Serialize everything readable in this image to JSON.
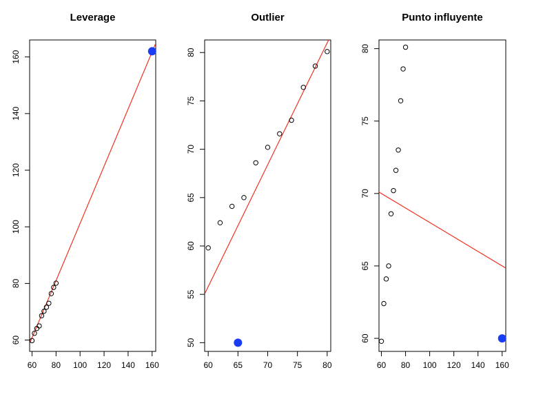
{
  "colors": {
    "points": "#000000",
    "special_point": "#1a3cf5",
    "fit_line": "#f0311f"
  },
  "chart_data": [
    {
      "type": "scatter",
      "title": "Leverage",
      "xlim": [
        58,
        163
      ],
      "ylim": [
        56,
        166
      ],
      "xticks": [
        60,
        80,
        100,
        120,
        140,
        160
      ],
      "yticks": [
        60,
        80,
        100,
        120,
        140,
        160
      ],
      "points": [
        [
          60,
          59.8
        ],
        [
          62,
          62.4
        ],
        [
          64,
          64.1
        ],
        [
          66,
          65.0
        ],
        [
          68,
          68.6
        ],
        [
          70,
          70.2
        ],
        [
          72,
          71.6
        ],
        [
          74,
          73.0
        ],
        [
          76,
          76.4
        ],
        [
          78,
          78.6
        ],
        [
          80,
          80.1
        ]
      ],
      "special_point": [
        160,
        162
      ],
      "fit_line": {
        "intercept": 0.2,
        "slope": 1.01
      }
    },
    {
      "type": "scatter",
      "title": "Outlier",
      "xlim": [
        59.4,
        80.6
      ],
      "ylim": [
        49.1,
        81.3
      ],
      "xticks": [
        60,
        65,
        70,
        75,
        80
      ],
      "yticks": [
        50,
        55,
        60,
        65,
        70,
        75,
        80
      ],
      "points": [
        [
          60,
          59.8
        ],
        [
          62,
          62.4
        ],
        [
          64,
          64.1
        ],
        [
          66,
          65.0
        ],
        [
          68,
          68.6
        ],
        [
          70,
          70.2
        ],
        [
          72,
          71.6
        ],
        [
          74,
          73.0
        ],
        [
          76,
          76.4
        ],
        [
          78,
          78.6
        ],
        [
          80,
          80.1
        ]
      ],
      "special_point": [
        65,
        50
      ],
      "fit_line": {
        "intercept": -19.8,
        "slope": 1.26
      }
    },
    {
      "type": "scatter",
      "title": "Punto influyente",
      "xlim": [
        58,
        163
      ],
      "ylim": [
        59.1,
        80.6
      ],
      "xticks": [
        60,
        80,
        100,
        120,
        140,
        160
      ],
      "yticks": [
        60,
        65,
        70,
        75,
        80
      ],
      "points": [
        [
          60,
          59.8
        ],
        [
          62,
          62.4
        ],
        [
          64,
          64.1
        ],
        [
          66,
          65.0
        ],
        [
          68,
          68.6
        ],
        [
          70,
          70.2
        ],
        [
          72,
          71.6
        ],
        [
          74,
          73.0
        ],
        [
          76,
          76.4
        ],
        [
          78,
          78.6
        ],
        [
          80,
          80.1
        ]
      ],
      "special_point": [
        160,
        60
      ],
      "fit_line": {
        "intercept": 73.0,
        "slope": -0.05
      }
    }
  ]
}
